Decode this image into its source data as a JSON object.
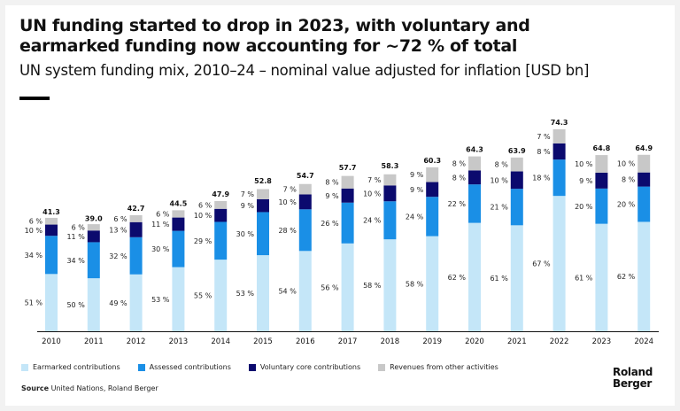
{
  "header": {
    "title_line1": "UN funding started to drop in 2023, with voluntary and",
    "title_line2": "earmarked funding now accounting for  ~72 % of total",
    "subtitle": "UN system funding mix, 2010–24 – nominal value adjusted for inflation [USD bn]"
  },
  "legend": {
    "earmarked": "Earmarked contributions",
    "assessed": "Assessed contributions",
    "voluntary": "Voluntary core contributions",
    "other": "Revenues from other activities"
  },
  "source": {
    "label": "Source",
    "text": " United Nations, Roland Berger"
  },
  "logo": {
    "line1": "Roland",
    "line2": "Berger"
  },
  "colors": {
    "earmarked": "#c4e6f8",
    "assessed": "#1a8fe6",
    "voluntary": "#0b0a6e",
    "other": "#c8c8c8"
  },
  "chart_data": {
    "type": "bar",
    "stacked": true,
    "unit": "USD bn",
    "categories": [
      "2010",
      "2011",
      "2012",
      "2013",
      "2014",
      "2015",
      "2016",
      "2017",
      "2018",
      "2019",
      "2020",
      "2021",
      "2022",
      "2023",
      "2024"
    ],
    "totals": [
      41.3,
      39.0,
      42.7,
      44.5,
      47.9,
      52.8,
      54.7,
      57.7,
      58.3,
      60.3,
      64.3,
      63.9,
      74.3,
      64.8,
      64.9
    ],
    "series": [
      {
        "name": "Earmarked contributions",
        "key": "earmarked",
        "percents": [
          51,
          50,
          49,
          53,
          55,
          53,
          54,
          56,
          58,
          58,
          62,
          61,
          67,
          61,
          62
        ]
      },
      {
        "name": "Assessed contributions",
        "key": "assessed",
        "percents": [
          34,
          34,
          32,
          30,
          29,
          30,
          28,
          26,
          24,
          24,
          22,
          21,
          18,
          20,
          20
        ]
      },
      {
        "name": "Voluntary core contributions",
        "key": "voluntary",
        "percents": [
          10,
          11,
          13,
          11,
          10,
          9,
          10,
          9,
          10,
          9,
          8,
          10,
          8,
          9,
          8
        ]
      },
      {
        "name": "Revenues from other activities",
        "key": "other",
        "percents": [
          6,
          6,
          6,
          6,
          6,
          7,
          7,
          8,
          7,
          9,
          8,
          8,
          7,
          10,
          10
        ]
      }
    ],
    "percent_suffix": "%"
  }
}
